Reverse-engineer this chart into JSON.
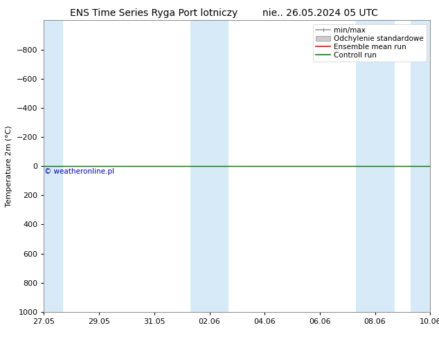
{
  "title_left": "ENS Time Series Ryga Port lotniczy",
  "title_right": "nie.. 26.05.2024 05 UTC",
  "ylabel": "Temperature 2m (°C)",
  "ylim_bottom": 1000,
  "ylim_top": -1000,
  "yticks": [
    -800,
    -600,
    -400,
    -200,
    0,
    200,
    400,
    600,
    800,
    1000
  ],
  "x_tick_labels": [
    "27.05",
    "29.05",
    "31.05",
    "02.06",
    "04.06",
    "06.06",
    "08.06",
    "10.06"
  ],
  "x_tick_positions": [
    0,
    2,
    4,
    6,
    8,
    10,
    12,
    14
  ],
  "x_total_days": 14,
  "background_color": "#ffffff",
  "plot_bg_color": "#ffffff",
  "band_color": "#d6eaf8",
  "band_xranges": [
    [
      0,
      0.7
    ],
    [
      5.3,
      6.7
    ],
    [
      11.3,
      12.7
    ],
    [
      13.3,
      14.0
    ]
  ],
  "green_line_y": 0,
  "green_line_color": "#008000",
  "red_line_color": "#ff0000",
  "gray_fill_color": "#cccccc",
  "minmax_color": "#999999",
  "watermark_text": "© weatheronline.pl",
  "watermark_color": "#0000cc",
  "legend_labels": [
    "min/max",
    "Odchylenie standardowe",
    "Ensemble mean run",
    "Controll run"
  ],
  "title_fontsize": 10,
  "axis_label_fontsize": 8,
  "tick_fontsize": 8,
  "legend_fontsize": 7.5
}
